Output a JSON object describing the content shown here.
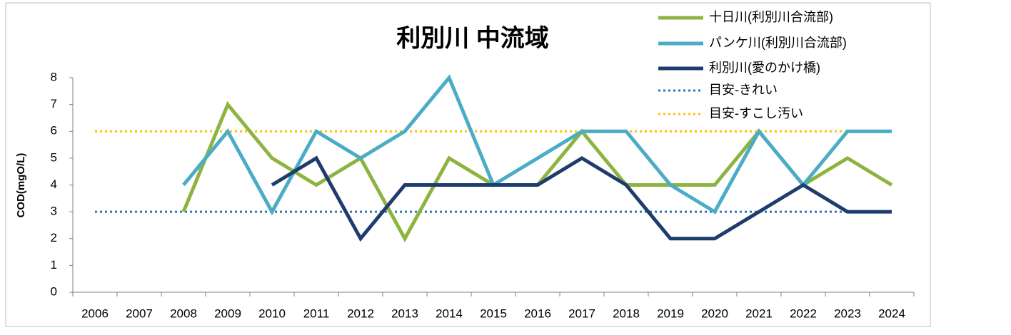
{
  "chart_data": {
    "type": "line",
    "title": "利別川 中流域",
    "y_label": "COD(mgO/L)",
    "categories": [
      "2006",
      "2007",
      "2008",
      "2009",
      "2010",
      "2011",
      "2012",
      "2013",
      "2014",
      "2015",
      "2016",
      "2017",
      "2018",
      "2019",
      "2020",
      "2021",
      "2022",
      "2023",
      "2024"
    ],
    "series": [
      {
        "name": "十日川(利別川合流部)",
        "color": "#8db441",
        "values": [
          null,
          null,
          3,
          7,
          5,
          4,
          5,
          2,
          5,
          4,
          4,
          6,
          4,
          4,
          4,
          6,
          4,
          5,
          4
        ]
      },
      {
        "name": "パンケ川(利別川合流部)",
        "color": "#4bacc6",
        "values": [
          null,
          null,
          4,
          6,
          3,
          6,
          5,
          6,
          8,
          4,
          5,
          6,
          6,
          4,
          3,
          6,
          4,
          6,
          6
        ]
      },
      {
        "name": "利別川(愛のかけ橋)",
        "color": "#1f3c6e",
        "values": [
          null,
          null,
          null,
          null,
          4,
          5,
          2,
          4,
          4,
          4,
          4,
          5,
          4,
          2,
          2,
          3,
          4,
          3,
          3
        ]
      }
    ],
    "reference_lines": [
      {
        "name": "目安-きれい",
        "color": "#2e75b6",
        "value": 3
      },
      {
        "name": "目安-すこし汚い",
        "color": "#ffc000",
        "value": 6
      }
    ],
    "ylim": [
      0,
      8
    ],
    "yticks": [
      0,
      1,
      2,
      3,
      4,
      5,
      6,
      7,
      8
    ],
    "legend": "top-right"
  }
}
